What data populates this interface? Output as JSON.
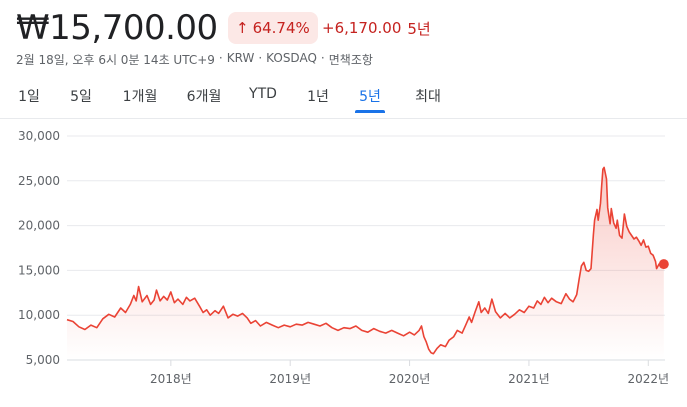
{
  "header": {
    "price": "₩15,700.00",
    "change_percent": "64.74%",
    "change_arrow_icon": "arrow-up-icon",
    "change_abs": "+6,170.00",
    "change_period": "5년",
    "accent_color": "#c5221f",
    "badge_bg": "#fce8e6"
  },
  "meta": {
    "datetime": "2월 18일, 오후 6시 0분 14초 UTC+9",
    "currency": "KRW",
    "exchange": "KOSDAQ",
    "disclaimer": "면책조항"
  },
  "tabs": [
    {
      "label": "1일"
    },
    {
      "label": "5일"
    },
    {
      "label": "1개월"
    },
    {
      "label": "6개월"
    },
    {
      "label": "YTD"
    },
    {
      "label": "1년"
    },
    {
      "label": "5년",
      "active": true
    },
    {
      "label": "최대"
    }
  ],
  "chart_data": {
    "type": "area",
    "line_color": "#ea4335",
    "grid": true,
    "ylim": [
      5000,
      30000
    ],
    "yticks": [
      5000,
      10000,
      15000,
      20000,
      25000,
      30000
    ],
    "ytick_labels": [
      "5,000",
      "10,000",
      "15,000",
      "20,000",
      "25,000",
      "30,000"
    ],
    "xticks": [
      {
        "label": "2018년",
        "x": 2018.0
      },
      {
        "label": "2019년",
        "x": 2019.0
      },
      {
        "label": "2020년",
        "x": 2020.0
      },
      {
        "label": "2021년",
        "x": 2021.0
      },
      {
        "label": "2022년",
        "x": 2022.0
      }
    ],
    "xlim": [
      2017.13,
      2022.14
    ],
    "series": [
      {
        "points": [
          [
            2017.13,
            9500
          ],
          [
            2017.18,
            9300
          ],
          [
            2017.23,
            8700
          ],
          [
            2017.28,
            8400
          ],
          [
            2017.33,
            8900
          ],
          [
            2017.38,
            8600
          ],
          [
            2017.43,
            9600
          ],
          [
            2017.48,
            10100
          ],
          [
            2017.53,
            9800
          ],
          [
            2017.58,
            10800
          ],
          [
            2017.62,
            10300
          ],
          [
            2017.66,
            11200
          ],
          [
            2017.69,
            12200
          ],
          [
            2017.71,
            11600
          ],
          [
            2017.73,
            13200
          ],
          [
            2017.76,
            11500
          ],
          [
            2017.8,
            12200
          ],
          [
            2017.83,
            11200
          ],
          [
            2017.86,
            11700
          ],
          [
            2017.88,
            12800
          ],
          [
            2017.91,
            11600
          ],
          [
            2017.94,
            12100
          ],
          [
            2017.97,
            11700
          ],
          [
            2018.0,
            12600
          ],
          [
            2018.03,
            11400
          ],
          [
            2018.06,
            11800
          ],
          [
            2018.1,
            11200
          ],
          [
            2018.13,
            12000
          ],
          [
            2018.16,
            11600
          ],
          [
            2018.2,
            11900
          ],
          [
            2018.24,
            11000
          ],
          [
            2018.27,
            10300
          ],
          [
            2018.3,
            10600
          ],
          [
            2018.33,
            10000
          ],
          [
            2018.37,
            10500
          ],
          [
            2018.4,
            10200
          ],
          [
            2018.44,
            11000
          ],
          [
            2018.48,
            9700
          ],
          [
            2018.52,
            10100
          ],
          [
            2018.56,
            9900
          ],
          [
            2018.6,
            10200
          ],
          [
            2018.64,
            9700
          ],
          [
            2018.67,
            9100
          ],
          [
            2018.71,
            9400
          ],
          [
            2018.75,
            8800
          ],
          [
            2018.8,
            9200
          ],
          [
            2018.85,
            8900
          ],
          [
            2018.9,
            8600
          ],
          [
            2018.95,
            8900
          ],
          [
            2019.0,
            8700
          ],
          [
            2019.05,
            9000
          ],
          [
            2019.1,
            8900
          ],
          [
            2019.15,
            9200
          ],
          [
            2019.2,
            9000
          ],
          [
            2019.25,
            8800
          ],
          [
            2019.3,
            9100
          ],
          [
            2019.35,
            8600
          ],
          [
            2019.4,
            8300
          ],
          [
            2019.45,
            8600
          ],
          [
            2019.5,
            8500
          ],
          [
            2019.55,
            8800
          ],
          [
            2019.6,
            8300
          ],
          [
            2019.65,
            8100
          ],
          [
            2019.7,
            8500
          ],
          [
            2019.75,
            8200
          ],
          [
            2019.8,
            8000
          ],
          [
            2019.85,
            8300
          ],
          [
            2019.9,
            8000
          ],
          [
            2019.95,
            7700
          ],
          [
            2020.0,
            8100
          ],
          [
            2020.04,
            7800
          ],
          [
            2020.08,
            8300
          ],
          [
            2020.1,
            8800
          ],
          [
            2020.12,
            7600
          ],
          [
            2020.14,
            7000
          ],
          [
            2020.16,
            6200
          ],
          [
            2020.18,
            5800
          ],
          [
            2020.2,
            5700
          ],
          [
            2020.23,
            6300
          ],
          [
            2020.26,
            6700
          ],
          [
            2020.3,
            6500
          ],
          [
            2020.33,
            7200
          ],
          [
            2020.37,
            7600
          ],
          [
            2020.4,
            8300
          ],
          [
            2020.44,
            8000
          ],
          [
            2020.47,
            8900
          ],
          [
            2020.5,
            9800
          ],
          [
            2020.52,
            9200
          ],
          [
            2020.55,
            10400
          ],
          [
            2020.58,
            11500
          ],
          [
            2020.6,
            10300
          ],
          [
            2020.63,
            10800
          ],
          [
            2020.66,
            10200
          ],
          [
            2020.69,
            11800
          ],
          [
            2020.72,
            10400
          ],
          [
            2020.76,
            9700
          ],
          [
            2020.8,
            10200
          ],
          [
            2020.84,
            9700
          ],
          [
            2020.88,
            10100
          ],
          [
            2020.92,
            10600
          ],
          [
            2020.96,
            10300
          ],
          [
            2021.0,
            11000
          ],
          [
            2021.04,
            10800
          ],
          [
            2021.07,
            11600
          ],
          [
            2021.1,
            11200
          ],
          [
            2021.13,
            12000
          ],
          [
            2021.16,
            11400
          ],
          [
            2021.19,
            11900
          ],
          [
            2021.23,
            11500
          ],
          [
            2021.27,
            11300
          ],
          [
            2021.31,
            12400
          ],
          [
            2021.34,
            11800
          ],
          [
            2021.37,
            11500
          ],
          [
            2021.4,
            12300
          ],
          [
            2021.42,
            14000
          ],
          [
            2021.44,
            15500
          ],
          [
            2021.46,
            15900
          ],
          [
            2021.48,
            15000
          ],
          [
            2021.5,
            14900
          ],
          [
            2021.52,
            15200
          ],
          [
            2021.54,
            19000
          ],
          [
            2021.55,
            20600
          ],
          [
            2021.57,
            21800
          ],
          [
            2021.58,
            20600
          ],
          [
            2021.6,
            22500
          ],
          [
            2021.61,
            24500
          ],
          [
            2021.62,
            26300
          ],
          [
            2021.63,
            26500
          ],
          [
            2021.65,
            25200
          ],
          [
            2021.66,
            22000
          ],
          [
            2021.68,
            20200
          ],
          [
            2021.69,
            21900
          ],
          [
            2021.71,
            20300
          ],
          [
            2021.73,
            19700
          ],
          [
            2021.74,
            20600
          ],
          [
            2021.76,
            18900
          ],
          [
            2021.78,
            18600
          ],
          [
            2021.8,
            21300
          ],
          [
            2021.82,
            19900
          ],
          [
            2021.84,
            19300
          ],
          [
            2021.86,
            18900
          ],
          [
            2021.88,
            18500
          ],
          [
            2021.9,
            18700
          ],
          [
            2021.92,
            18300
          ],
          [
            2021.94,
            17800
          ],
          [
            2021.96,
            18400
          ],
          [
            2021.98,
            17600
          ],
          [
            2022.0,
            17700
          ],
          [
            2022.02,
            16900
          ],
          [
            2022.04,
            16700
          ],
          [
            2022.06,
            16000
          ],
          [
            2022.07,
            15200
          ],
          [
            2022.09,
            15700
          ],
          [
            2022.11,
            15500
          ],
          [
            2022.13,
            15700
          ]
        ]
      }
    ],
    "last_point": [
      2022.13,
      15700
    ]
  }
}
